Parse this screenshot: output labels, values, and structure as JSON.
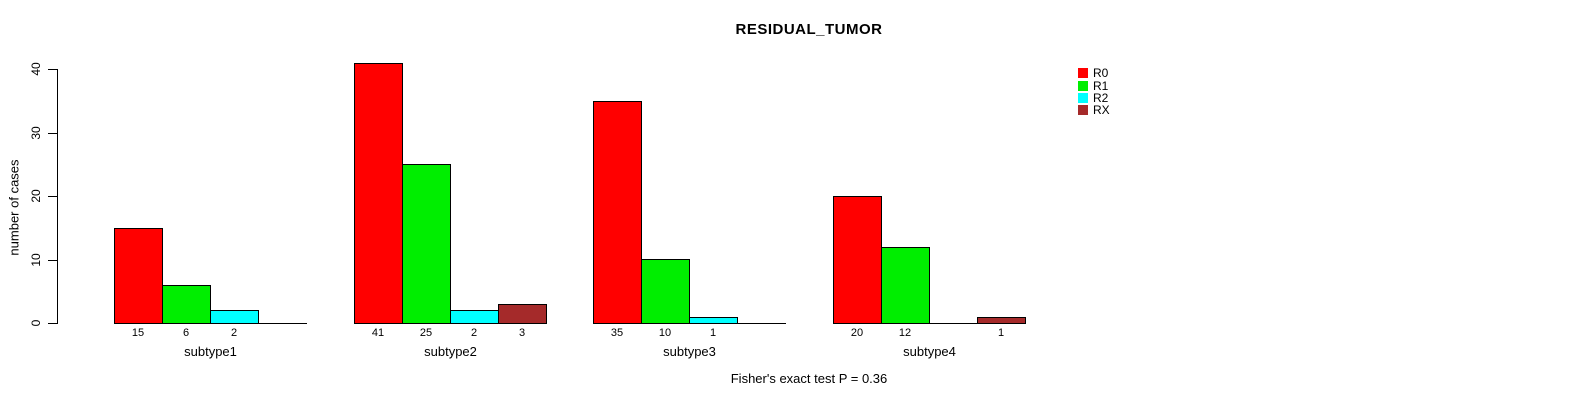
{
  "chart_data": {
    "type": "bar",
    "title": "RESIDUAL_TUMOR",
    "ylabel": "number of cases",
    "xlabel": "",
    "annotation": "Fisher's exact test P = 0.36",
    "categories": [
      "subtype1",
      "subtype2",
      "subtype3",
      "subtype4"
    ],
    "series": [
      {
        "name": "R0",
        "color": "#FF0000",
        "values": [
          15,
          41,
          35,
          20
        ]
      },
      {
        "name": "R1",
        "color": "#00EE00",
        "values": [
          6,
          25,
          10,
          12
        ]
      },
      {
        "name": "R2",
        "color": "#00FFFF",
        "values": [
          2,
          2,
          1,
          0
        ]
      },
      {
        "name": "RX",
        "color": "#A52A2A",
        "values": [
          0,
          3,
          0,
          1
        ]
      }
    ],
    "ylim": [
      0,
      40
    ],
    "yticks": [
      0,
      10,
      20,
      30,
      40
    ],
    "grid": false,
    "legend_position": "top-right",
    "value_labels": "shown under each nonzero bar",
    "background": "#FFFFFF"
  }
}
